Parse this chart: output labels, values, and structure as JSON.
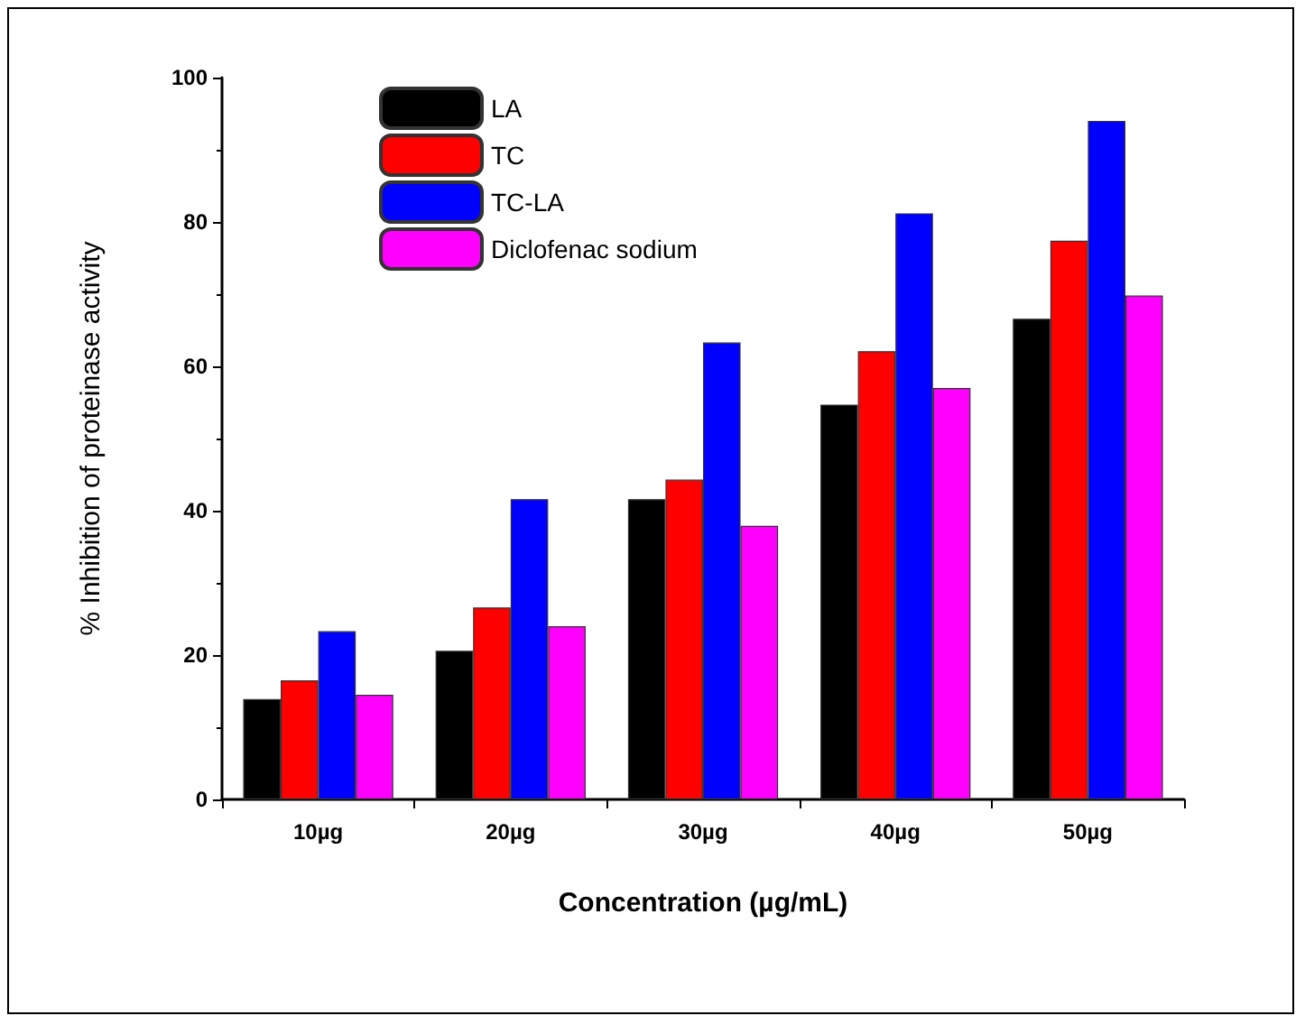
{
  "chart_data": {
    "type": "bar",
    "xlabel": "Concentration (µg/mL)",
    "ylabel": "% Inhibition of proteinase activity",
    "categories": [
      "10µg",
      "20µg",
      "30µg",
      "40µg",
      "50µg"
    ],
    "series": [
      {
        "name": "LA",
        "color": "#000000",
        "values": [
          13.9,
          20.6,
          41.6,
          54.7,
          66.6
        ]
      },
      {
        "name": "TC",
        "color": "#ff0000",
        "values": [
          16.5,
          26.6,
          44.3,
          62.1,
          77.4
        ]
      },
      {
        "name": "TC-LA",
        "color": "#0000ff",
        "values": [
          23.3,
          41.6,
          63.3,
          81.2,
          94.0
        ]
      },
      {
        "name": "Diclofenac sodium",
        "color": "#ff00ff",
        "values": [
          14.5,
          24.0,
          37.9,
          57.0,
          69.8
        ]
      }
    ],
    "ylim": [
      0,
      100
    ],
    "yticks": [
      0,
      20,
      40,
      60,
      80,
      100
    ],
    "grid": false,
    "legend": "top left"
  }
}
